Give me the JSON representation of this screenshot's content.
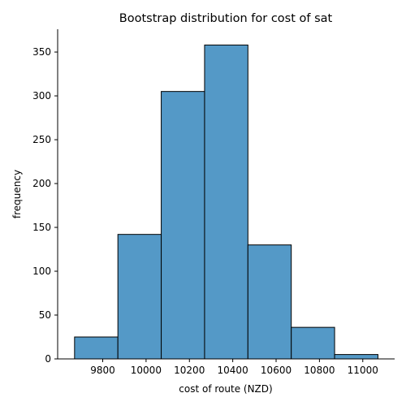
{
  "chart_data": {
    "type": "bar",
    "title": "Bootstrap distribution for cost of sat",
    "xlabel": "cost of route (NZD)",
    "ylabel": "frequency",
    "bins": [
      {
        "start": 9670,
        "end": 9870,
        "count": 25
      },
      {
        "start": 9870,
        "end": 10070,
        "count": 142
      },
      {
        "start": 10070,
        "end": 10270,
        "count": 305
      },
      {
        "start": 10270,
        "end": 10470,
        "count": 358
      },
      {
        "start": 10470,
        "end": 10670,
        "count": 130
      },
      {
        "start": 10670,
        "end": 10870,
        "count": 36
      },
      {
        "start": 10870,
        "end": 11070,
        "count": 5
      }
    ],
    "xlim": [
      9592,
      11147
    ],
    "ylim": [
      0,
      376
    ],
    "xticks": [
      9800,
      10000,
      10200,
      10400,
      10600,
      10800,
      11000
    ],
    "yticks": [
      0,
      50,
      100,
      150,
      200,
      250,
      300,
      350
    ],
    "bar_color": "#5499c7",
    "edge_color": "#000000",
    "grid": false
  }
}
